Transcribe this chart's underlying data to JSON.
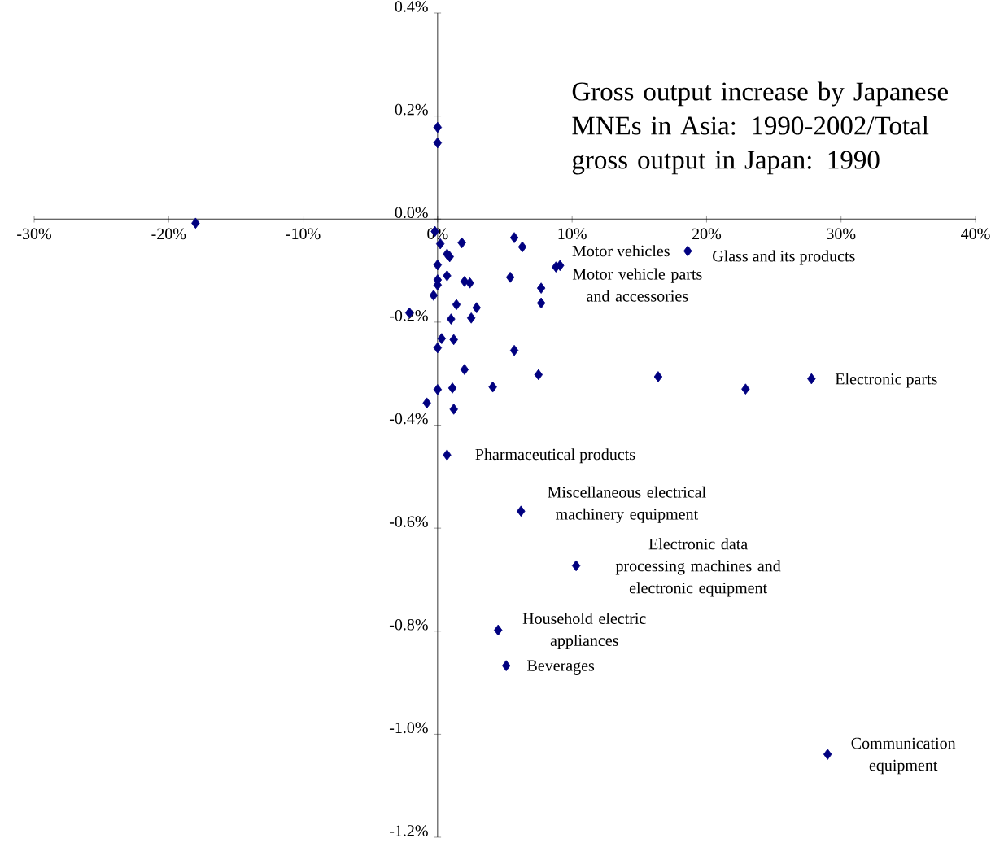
{
  "chart_data": {
    "type": "scatter",
    "title": "Gross output increase by Japanese MNEs in Asia: 1990-2002/Total gross output in Japan: 1990",
    "xlim": [
      -30,
      40
    ],
    "xticks": [
      {
        "value": -30,
        "label": "-30%"
      },
      {
        "value": -20,
        "label": "-20%"
      },
      {
        "value": -10,
        "label": "-10%"
      },
      {
        "value": 0,
        "label": "0%"
      },
      {
        "value": 10,
        "label": "10%"
      },
      {
        "value": 20,
        "label": "20%"
      },
      {
        "value": 30,
        "label": "30%"
      },
      {
        "value": 40,
        "label": "40%"
      }
    ],
    "ylim": [
      -1.2,
      0.4
    ],
    "yticks": [
      {
        "value": 0.4,
        "label": "0.4%"
      },
      {
        "value": 0.2,
        "label": "0.2%"
      },
      {
        "value": 0,
        "label": "0.0%"
      },
      {
        "value": -0.2,
        "label": "-0.2%"
      },
      {
        "value": -0.4,
        "label": "-0.4%"
      },
      {
        "value": -0.6,
        "label": "-0.6%"
      },
      {
        "value": -0.8,
        "label": "-0.8%"
      },
      {
        "value": -1.0,
        "label": "-1.0%"
      },
      {
        "value": -1.2,
        "label": "-1.2%"
      }
    ],
    "marker": "diamond",
    "series": [
      {
        "color": "#000080",
        "x": [
          -0.2,
          0.2,
          1.8,
          0.7,
          0.9,
          0.0,
          0.7,
          0.0,
          0.0,
          2.0,
          2.4,
          -0.3,
          1.4,
          2.9,
          -2.1,
          1.0,
          2.5,
          0.3,
          1.2,
          0.0,
          2.0,
          0.0,
          1.1,
          4.1,
          -0.8,
          1.2,
          5.7,
          6.3,
          5.4,
          7.7,
          7.7,
          5.7,
          7.5,
          -18.0,
          0.0,
          0.0,
          18.6,
          9.1,
          8.8,
          16.4,
          22.9,
          27.8,
          0.7,
          6.2,
          10.3,
          4.5,
          5.1,
          29.0
        ],
        "values": [
          -0.024,
          -0.048,
          -0.046,
          -0.068,
          -0.073,
          -0.089,
          -0.11,
          -0.118,
          -0.128,
          -0.121,
          -0.124,
          -0.148,
          -0.166,
          -0.172,
          -0.182,
          -0.194,
          -0.192,
          -0.232,
          -0.234,
          -0.25,
          -0.292,
          -0.331,
          -0.328,
          -0.326,
          -0.357,
          -0.369,
          -0.036,
          -0.054,
          -0.113,
          -0.134,
          -0.163,
          -0.255,
          -0.302,
          -0.008,
          0.178,
          0.148,
          -0.062,
          -0.09,
          -0.093,
          -0.306,
          -0.33,
          -0.31,
          -0.458,
          -0.567,
          -0.673,
          -0.798,
          -0.867,
          -1.039
        ]
      }
    ],
    "annotations": [
      {
        "text": "Motor vehicles",
        "x": 9.1,
        "y": -0.09
      },
      {
        "text": "Motor vehicle parts and accessories",
        "x": 8.8,
        "y": -0.093
      },
      {
        "text": "Glass and its products",
        "x": 18.6,
        "y": -0.062
      },
      {
        "text": "Electronic parts",
        "x": 27.8,
        "y": -0.31
      },
      {
        "text": "Pharmaceutical products",
        "x": 0.7,
        "y": -0.458
      },
      {
        "text": "Miscellaneous electrical machinery equipment",
        "x": 6.2,
        "y": -0.567
      },
      {
        "text": "Electronic data processing machines and electronic equipment",
        "x": 10.3,
        "y": -0.673
      },
      {
        "text": "Household electric appliances",
        "x": 4.5,
        "y": -0.798
      },
      {
        "text": "Beverages",
        "x": 5.1,
        "y": -0.867
      },
      {
        "text": "Communication equipment",
        "x": 29.0,
        "y": -1.039
      }
    ]
  }
}
